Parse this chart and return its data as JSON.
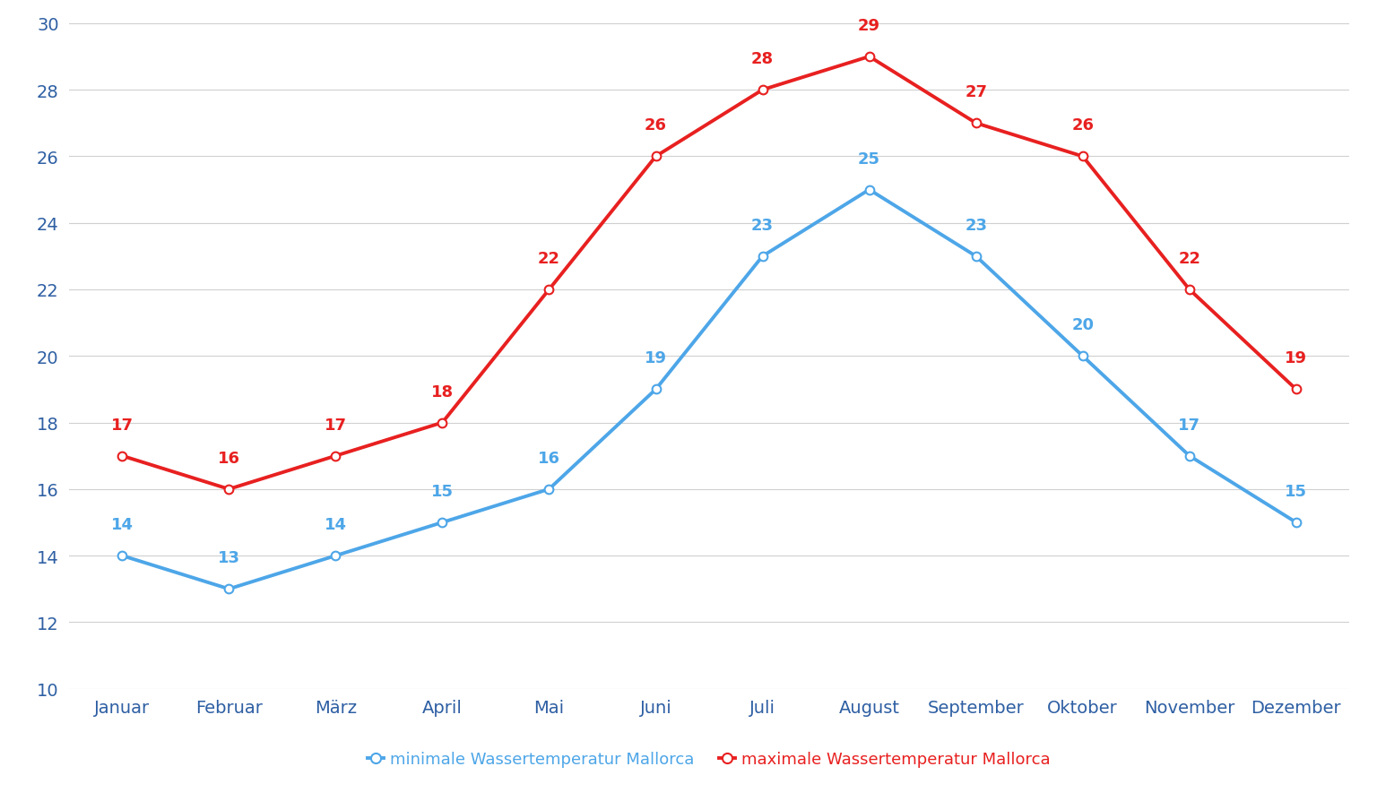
{
  "months": [
    "Januar",
    "Februar",
    "März",
    "April",
    "Mai",
    "Juni",
    "Juli",
    "August",
    "September",
    "Oktober",
    "November",
    "Dezember"
  ],
  "min_temps": [
    14,
    13,
    14,
    15,
    16,
    19,
    23,
    25,
    23,
    20,
    17,
    15
  ],
  "max_temps": [
    17,
    16,
    17,
    18,
    22,
    26,
    28,
    29,
    27,
    26,
    22,
    19
  ],
  "min_color": "#4da6e8",
  "max_color": "#e82020",
  "tick_color": "#2e5fa3",
  "min_label": "minimale Wassertemperatur Mallorca",
  "max_label": "maximale Wassertemperatur Mallorca",
  "ylim_min": 10,
  "ylim_max": 30,
  "yticks": [
    10,
    12,
    14,
    16,
    18,
    20,
    22,
    24,
    26,
    28,
    30
  ],
  "background_color": "#ffffff",
  "grid_color": "#d0d0d0",
  "linewidth": 2.8,
  "markersize": 7,
  "tick_fontsize": 14,
  "legend_fontsize": 13,
  "annotation_fontsize": 13,
  "annotation_fontweight": "bold"
}
